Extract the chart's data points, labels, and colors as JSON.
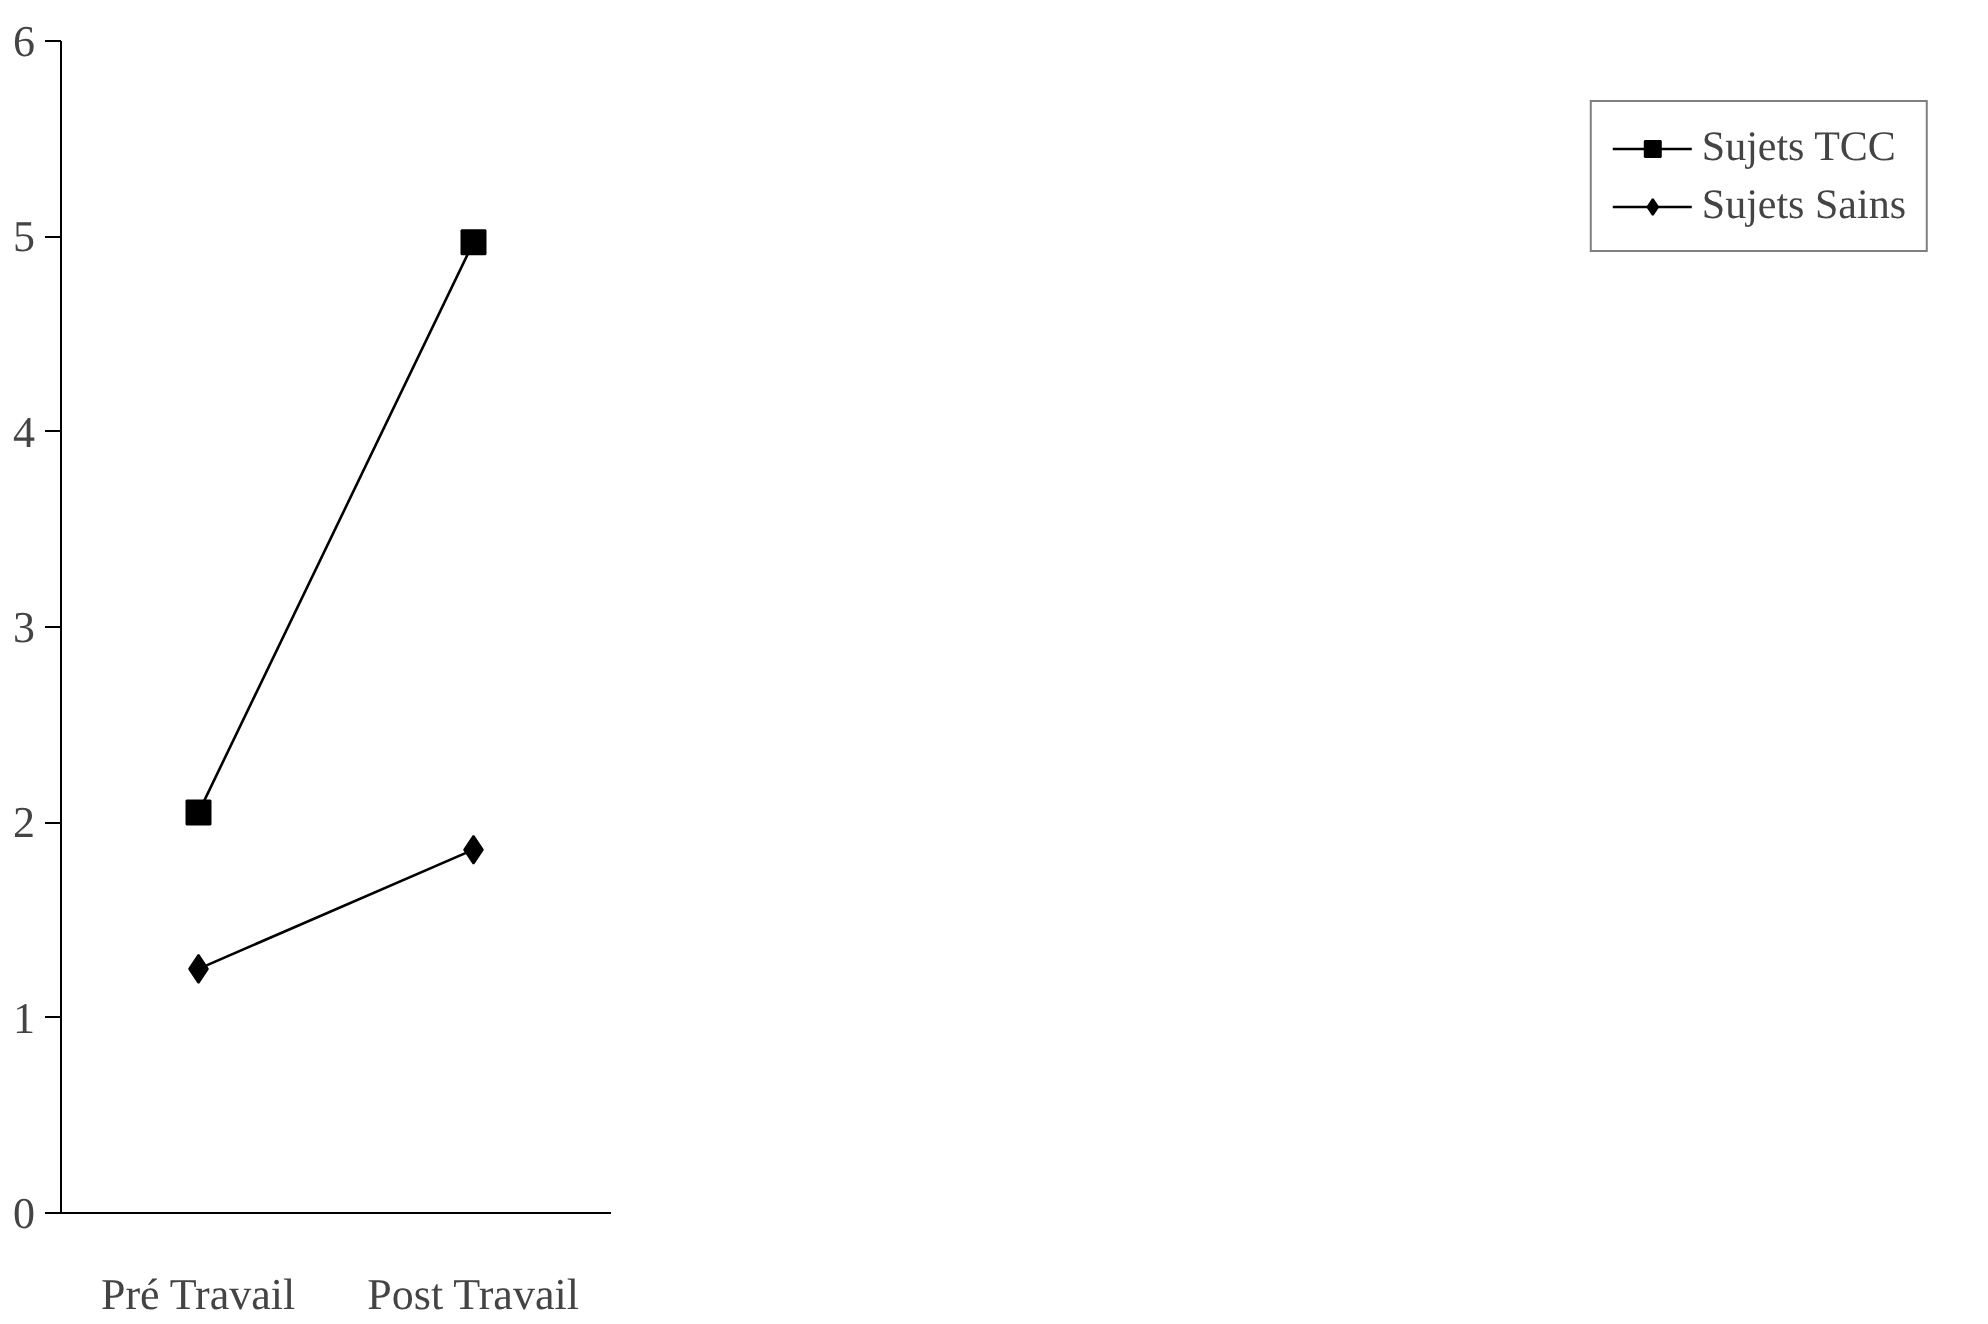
{
  "chart_data": {
    "type": "line",
    "categories": [
      "Pré Travail",
      "Post Travail"
    ],
    "ylim": [
      0,
      6
    ],
    "yticks": [
      0,
      1,
      2,
      3,
      4,
      5,
      6
    ],
    "grid": false,
    "legend": "right",
    "line_style": "solid",
    "series": [
      {
        "name": "Sujets TCC",
        "color": "#000000",
        "marker": "square",
        "values": [
          2.05,
          4.97
        ]
      },
      {
        "name": "Sujets Sains",
        "color": "#000000",
        "marker": "diamond",
        "values": [
          1.25,
          1.86
        ]
      }
    ]
  }
}
